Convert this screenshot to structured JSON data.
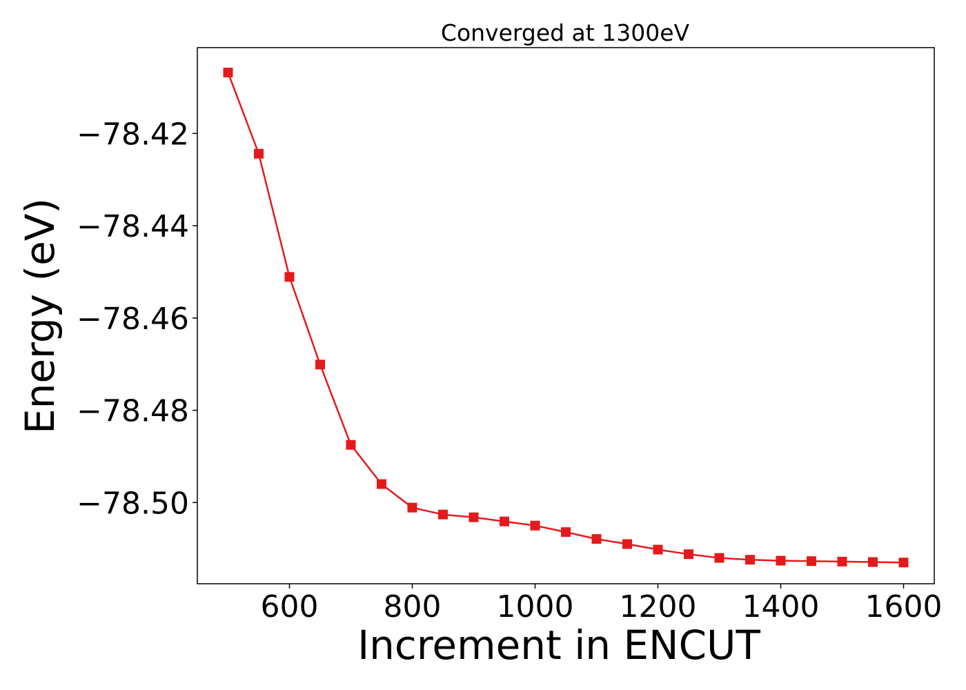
{
  "chart_data": {
    "type": "line",
    "title": "Converged at 1300eV",
    "xlabel": "Increment in ENCUT",
    "ylabel": "Energy (eV)",
    "xlim": [
      450,
      1650
    ],
    "ylim": [
      -78.5176,
      -78.4014
    ],
    "x_ticks": [
      600,
      800,
      1000,
      1200,
      1400,
      1600
    ],
    "x_tick_labels": [
      "600",
      "800",
      "1000",
      "1200",
      "1400",
      "1600"
    ],
    "y_ticks": [
      -78.42,
      -78.44,
      -78.46,
      -78.48,
      -78.5
    ],
    "y_tick_labels": [
      "−78.42",
      "−78.44",
      "−78.46",
      "−78.48",
      "−78.50"
    ],
    "grid": false,
    "series": [
      {
        "color": "#e31a1c",
        "marker": "square",
        "x": [
          500,
          550,
          600,
          650,
          700,
          750,
          800,
          850,
          900,
          950,
          1000,
          1050,
          1100,
          1150,
          1200,
          1250,
          1300,
          1350,
          1400,
          1450,
          1500,
          1550,
          1600
        ],
        "y": [
          -78.4068,
          -78.4244,
          -78.4511,
          -78.4701,
          -78.4875,
          -78.496,
          -78.5011,
          -78.5026,
          -78.5032,
          -78.5041,
          -78.505,
          -78.5064,
          -78.5079,
          -78.509,
          -78.5102,
          -78.5112,
          -78.512,
          -78.5124,
          -78.5126,
          -78.5127,
          -78.5128,
          -78.5129,
          -78.513
        ]
      }
    ]
  }
}
